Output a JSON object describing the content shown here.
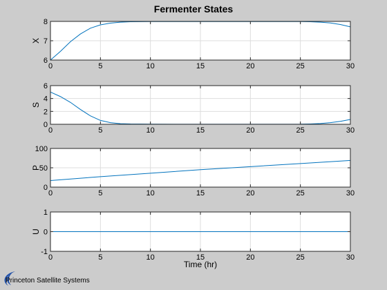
{
  "figure": {
    "title": "Fermenter States",
    "background_color": "#cccccc",
    "axes_color": "#ffffff",
    "grid_color": "#dddddd",
    "line_color": "#0072bd",
    "footer": {
      "text": "Princeton Satellite Systems",
      "logo_icon": "swoosh-logo-icon",
      "logo_color": "#1f4fa8"
    }
  },
  "chart_data": [
    {
      "type": "line",
      "ylabel": "X",
      "xlabel": "",
      "xlim": [
        0,
        30
      ],
      "ylim": [
        6,
        8
      ],
      "xticks": [
        0,
        5,
        10,
        15,
        20,
        25,
        30
      ],
      "yticks": [
        6,
        7,
        8
      ],
      "grid": true,
      "series": [
        {
          "x": [
            0,
            1,
            2,
            3,
            4,
            5,
            6,
            7,
            8,
            10,
            12,
            15,
            20,
            25,
            26,
            27,
            28,
            29,
            30
          ],
          "y": [
            6.0,
            6.45,
            6.95,
            7.35,
            7.65,
            7.82,
            7.91,
            7.96,
            7.98,
            7.99,
            7.99,
            7.99,
            7.99,
            7.99,
            7.98,
            7.96,
            7.92,
            7.84,
            7.72
          ]
        }
      ]
    },
    {
      "type": "line",
      "ylabel": "S",
      "xlabel": "",
      "xlim": [
        0,
        30
      ],
      "ylim": [
        0,
        6
      ],
      "xticks": [
        0,
        5,
        10,
        15,
        20,
        25,
        30
      ],
      "yticks": [
        0,
        2,
        4,
        6
      ],
      "grid": true,
      "series": [
        {
          "x": [
            0,
            1,
            2,
            3,
            4,
            5,
            6,
            7,
            8,
            10,
            15,
            20,
            25,
            26,
            27,
            28,
            29,
            30
          ],
          "y": [
            5.0,
            4.3,
            3.4,
            2.3,
            1.3,
            0.6,
            0.25,
            0.1,
            0.05,
            0.02,
            0.01,
            0.01,
            0.02,
            0.06,
            0.12,
            0.25,
            0.45,
            0.75
          ]
        }
      ]
    },
    {
      "type": "line",
      "ylabel": "P",
      "xlabel": "",
      "xlim": [
        0,
        30
      ],
      "ylim": [
        0,
        100
      ],
      "xticks": [
        0,
        5,
        10,
        15,
        20,
        25,
        30
      ],
      "yticks": [
        0,
        50,
        100
      ],
      "grid": true,
      "series": [
        {
          "x": [
            0,
            5,
            10,
            15,
            20,
            25,
            30
          ],
          "y": [
            17,
            27,
            36,
            45,
            53,
            61,
            69
          ]
        }
      ]
    },
    {
      "type": "line",
      "ylabel": "U",
      "xlabel": "Time (hr)",
      "xlim": [
        0,
        30
      ],
      "ylim": [
        -1,
        1
      ],
      "xticks": [
        0,
        5,
        10,
        15,
        20,
        25,
        30
      ],
      "yticks": [
        -1,
        0,
        1
      ],
      "grid": true,
      "series": [
        {
          "x": [
            0,
            30
          ],
          "y": [
            0,
            0
          ]
        }
      ]
    }
  ]
}
